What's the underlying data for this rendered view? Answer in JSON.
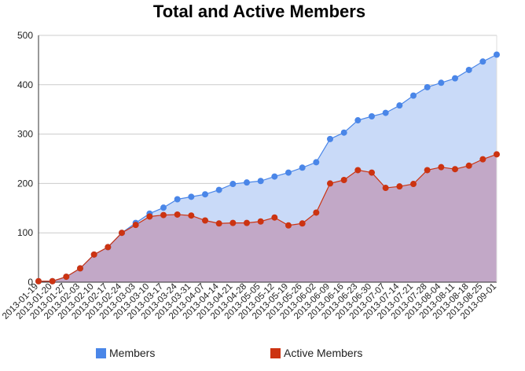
{
  "chart_data": {
    "type": "area",
    "title": "Total and Active Members",
    "xlabel": "",
    "ylabel": "",
    "ylim": [
      0,
      500
    ],
    "yticks": [
      0,
      100,
      200,
      300,
      400,
      500
    ],
    "grid": true,
    "legend_position": "bottom",
    "categories": [
      "2013-01-19",
      "2013-01-20",
      "2013-01-27",
      "2013-02-03",
      "2013-02-10",
      "2013-02-17",
      "2013-02-24",
      "2013-03-03",
      "2013-03-10",
      "2013-03-17",
      "2013-03-24",
      "2013-03-31",
      "2013-04-07",
      "2013-04-14",
      "2013-04-21",
      "2013-04-28",
      "2013-05-05",
      "2013-05-12",
      "2013-05-19",
      "2013-05-26",
      "2013-06-02",
      "2013-06-09",
      "2013-06-16",
      "2013-06-23",
      "2013-06-30",
      "2013-07-07",
      "2013-07-14",
      "2013-07-21",
      "2013-07-28",
      "2013-08-04",
      "2013-08-11",
      "2013-08-18",
      "2013-08-25",
      "2013-09-01"
    ],
    "series": [
      {
        "name": "Members",
        "color": "#4a86e8",
        "fill": "#c9daf8",
        "values": [
          2,
          2,
          11,
          28,
          56,
          71,
          100,
          120,
          139,
          151,
          168,
          173,
          178,
          187,
          199,
          202,
          205,
          214,
          222,
          232,
          243,
          290,
          303,
          328,
          336,
          343,
          358,
          378,
          395,
          404,
          413,
          430,
          447,
          461
        ]
      },
      {
        "name": "Active Members",
        "color": "#cc3311",
        "fill": "#c2a8c7",
        "values": [
          2,
          2,
          11,
          28,
          56,
          71,
          100,
          116,
          133,
          136,
          137,
          135,
          125,
          119,
          120,
          120,
          123,
          131,
          115,
          119,
          141,
          200,
          207,
          227,
          222,
          191,
          194,
          199,
          227,
          233,
          229,
          236,
          249,
          259
        ]
      }
    ]
  }
}
